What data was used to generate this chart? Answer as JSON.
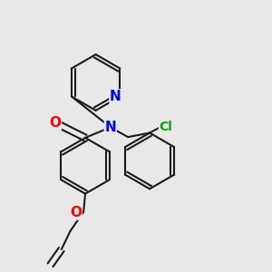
{
  "bg_color": "#e8e8e8",
  "bond_color": "#1a1a1a",
  "bond_width": 1.5,
  "atom_colors": {
    "N": "#0000ff",
    "O": "#ff0000",
    "Cl": "#00aa00"
  },
  "font_size": 9,
  "fig_size": [
    3.0,
    3.0
  ],
  "dpi": 100
}
